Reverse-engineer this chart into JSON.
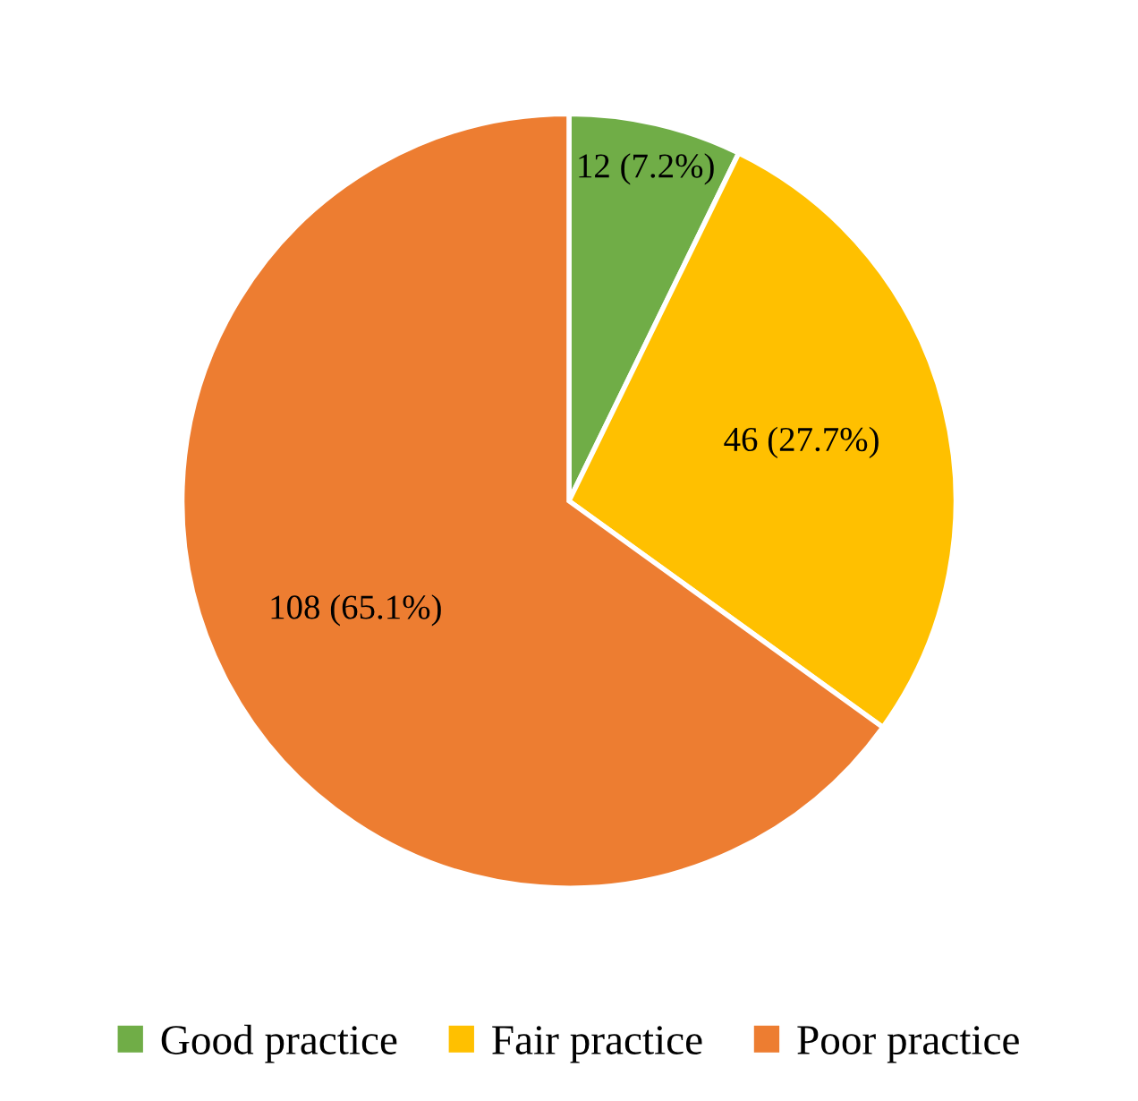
{
  "chart_data": {
    "type": "pie",
    "categories": [
      "Good practice",
      "Fair practice",
      "Poor practice"
    ],
    "values": [
      12,
      46,
      108
    ],
    "colors": [
      "#70ad47",
      "#ffc000",
      "#ed7d31"
    ],
    "value_labels": [
      "12 (7.2%)",
      "46 (27.7%)",
      "108 (65.1%)"
    ],
    "legend": "bottom"
  }
}
